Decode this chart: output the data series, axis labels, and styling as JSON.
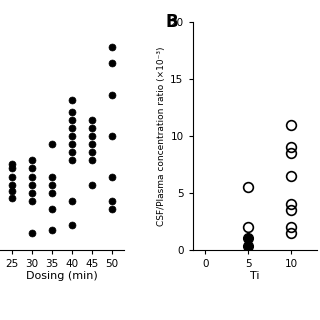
{
  "panel_A": {
    "x_data": {
      "25": [
        3.2,
        3.6,
        4.0,
        4.5,
        5.0,
        5.3
      ],
      "30": [
        1.0,
        3.0,
        3.5,
        4.0,
        4.5,
        5.0,
        5.5
      ],
      "35": [
        1.2,
        2.5,
        3.5,
        4.0,
        4.5,
        6.5
      ],
      "40": [
        1.5,
        3.0,
        5.5,
        6.0,
        6.5,
        7.0,
        7.5,
        8.0,
        8.5,
        9.2
      ],
      "45": [
        4.0,
        5.5,
        6.0,
        6.5,
        7.0,
        7.5,
        8.0
      ],
      "50": [
        2.5,
        3.0,
        4.5,
        7.0,
        9.5,
        11.5,
        12.5
      ]
    },
    "xlabel": "Dosing (min)",
    "xlim": [
      22,
      53
    ],
    "ylim": [
      0,
      14
    ],
    "xticks": [
      25,
      30,
      35,
      40,
      45,
      50
    ],
    "marker_size": 5
  },
  "panel_B": {
    "label": "B",
    "x_data_open": {
      "5": [
        2.0,
        5.5
      ],
      "10": [
        1.5,
        2.0,
        3.5,
        4.0,
        6.5,
        8.5,
        9.0,
        11.0
      ]
    },
    "x_data_filled": {
      "5": [
        0.3,
        1.0
      ]
    },
    "xlabel": "Ti",
    "ylabel": "CSF/Plasma concentration ratio (×10⁻³)",
    "xlim": [
      -1.5,
      13
    ],
    "ylim": [
      0,
      20
    ],
    "xticks": [
      0,
      5,
      10
    ],
    "yticks": [
      0,
      5,
      10,
      15,
      20
    ],
    "marker_size": 7
  },
  "background_color": "#ffffff",
  "figure_width": 3.2,
  "figure_height": 3.2,
  "dpi": 100
}
